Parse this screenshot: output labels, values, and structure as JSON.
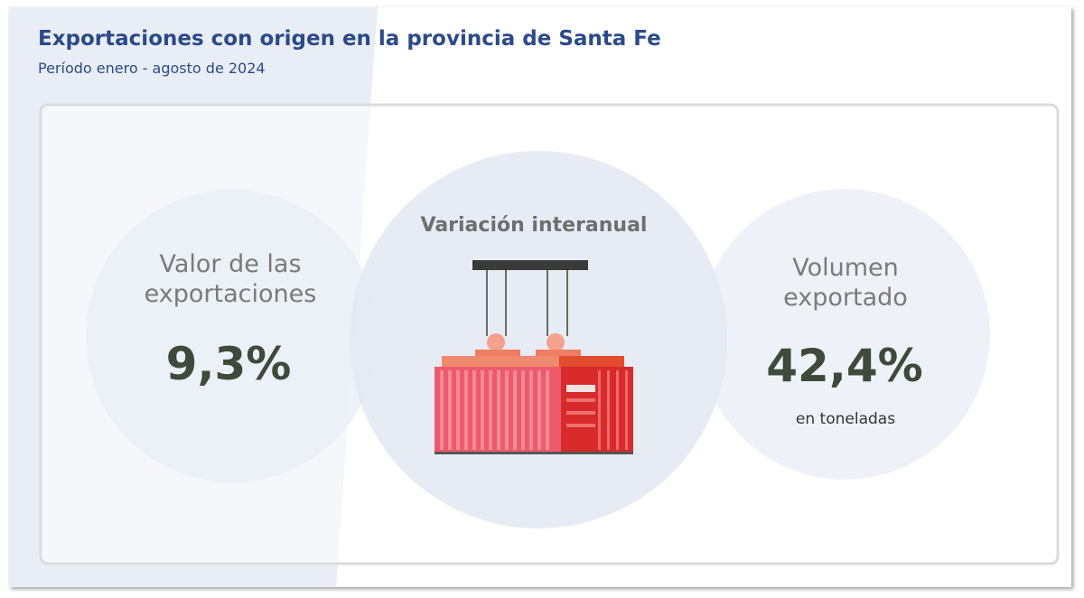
{
  "header": {
    "title": "Exportaciones con origen en la provincia de Santa Fe",
    "subtitle": "Período enero - agosto de 2024"
  },
  "cards": [
    {
      "label": "Valor de las exportaciones",
      "label_lines": [
        "Valor de las",
        "exportaciones"
      ],
      "value": "9,3%"
    },
    {
      "label": "Variación interanual"
    },
    {
      "label": "Volumen exportado",
      "label_lines": [
        "Volumen",
        "exportado"
      ],
      "value": "42,4%",
      "note": "en toneladas"
    }
  ]
}
